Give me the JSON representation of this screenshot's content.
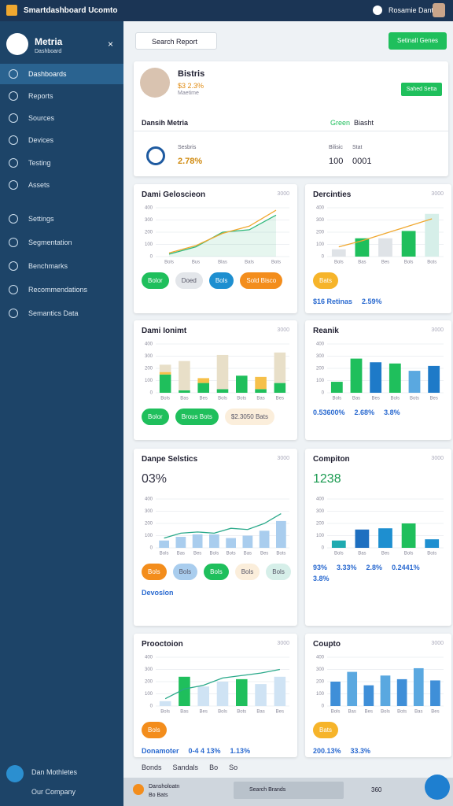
{
  "header": {
    "title": "Smartdashboard Ucomto",
    "user": "Rosamie Dant"
  },
  "sidebar": {
    "brand": "Metria",
    "subtitle": "Dashboard",
    "items": [
      "Dashboards",
      "Reports",
      "Sources",
      "Devices",
      "Testing",
      "Assets",
      "Settings",
      "Segmentation",
      "Benchmarks",
      "Recommendations",
      "Semantics Data"
    ],
    "footer": [
      "Dan Mothletes",
      "Our Company"
    ]
  },
  "toolbar": {
    "search": "Search Report",
    "button": "Setinall Genes"
  },
  "profile": {
    "name": "Bistris",
    "stat": "$3 2.3%",
    "role": "Maetime",
    "button": "Sahed Setta",
    "tabs": [
      "Dansih Metria",
      "Green",
      "Biasht"
    ],
    "metric_label": "Sesbris",
    "metric": "2.78%",
    "col_labels": [
      "Bilisic",
      "Stat"
    ],
    "col_values": [
      "100",
      "0001"
    ]
  },
  "panels": [
    {
      "title": "Dami Geloscieon",
      "corner": "3000",
      "chart": {
        "ylim": [
          0,
          400
        ],
        "yticks": [
          0,
          100,
          200,
          300,
          400
        ],
        "categories": [
          "Bols",
          "Bus",
          "Blas",
          "Bals",
          "Bots"
        ],
        "series": [
          {
            "type": "area",
            "color": "#2fb87a",
            "values": [
              20,
              80,
              200,
              220,
              340
            ]
          },
          {
            "type": "line",
            "color": "#f0a830",
            "values": [
              30,
              90,
              190,
              250,
              380
            ]
          }
        ]
      },
      "chips": [
        {
          "label": "Bolor",
          "color": "#1fbf5c"
        },
        {
          "label": "Doed",
          "color": "#e3e6ea"
        },
        {
          "label": "Bols",
          "color": "#1e8fd0"
        },
        {
          "label": "Sold Bisco",
          "color": "#f38d1c"
        }
      ],
      "stats": []
    },
    {
      "title": "Dercinties",
      "corner": "3000",
      "chart": {
        "ylim": [
          0,
          400
        ],
        "yticks": [
          0,
          100,
          200,
          300,
          400
        ],
        "categories": [
          "Bols",
          "Bas",
          "Bes",
          "Bols",
          "Bots"
        ],
        "series": [
          {
            "type": "bar",
            "colors": [
              "#dfe3e7",
              "#1fbf5c",
              "#dfe3e7",
              "#1fbf5c",
              "#d6efe9"
            ],
            "values": [
              60,
              150,
              150,
              210,
              350
            ]
          },
          {
            "type": "line",
            "color": "#f0a830",
            "values": [
              80,
              130,
              190,
              250,
              310
            ]
          }
        ]
      },
      "chips": [
        {
          "label": "Bats",
          "color": "#f6b42a"
        }
      ],
      "stats": [
        "$16 Retinas",
        "2.59%"
      ]
    },
    {
      "title": "Dami Ionimt",
      "corner": "3000",
      "chart": {
        "ylim": [
          0,
          400
        ],
        "yticks": [
          0,
          100,
          200,
          300,
          400
        ],
        "categories": [
          "Bols",
          "Bas",
          "Bes",
          "Bols",
          "Bots",
          "Bas",
          "Bes"
        ],
        "stacked": true,
        "series": [
          {
            "type": "bar",
            "color": "#1fbf5c",
            "values": [
              150,
              20,
              80,
              30,
              140,
              30,
              80
            ]
          },
          {
            "type": "bar",
            "color": "#f6c04a",
            "values": [
              20,
              0,
              40,
              0,
              0,
              100,
              0
            ]
          },
          {
            "type": "bar",
            "color": "#e8dfc8",
            "values": [
              60,
              240,
              0,
              280,
              0,
              0,
              250
            ]
          }
        ]
      },
      "chips": [
        {
          "label": "Bolor",
          "color": "#1fbf5c"
        },
        {
          "label": "Brous Bots",
          "color": "#1fbf5c"
        },
        {
          "label": "$2.3050 Bats",
          "color": "#fbeedb"
        }
      ],
      "stats": []
    },
    {
      "title": "Reanik",
      "corner": "3000",
      "chart": {
        "ylim": [
          0,
          400
        ],
        "yticks": [
          0,
          100,
          200,
          300,
          400
        ],
        "categories": [
          "Bols",
          "Bas",
          "Bes",
          "Bols",
          "Bots",
          "Bes"
        ],
        "series": [
          {
            "type": "bar",
            "colors": [
              "#1fbf5c",
              "#1fbf5c",
              "#1e7ac8",
              "#1fbf5c",
              "#5aa8e0",
              "#1e7ac8"
            ],
            "values": [
              90,
              280,
              250,
              240,
              180,
              220
            ]
          }
        ]
      },
      "chips": [],
      "stats": [
        "0.53600%",
        "2.68%",
        "3.8%"
      ]
    },
    {
      "title": "Danpe Selstics",
      "corner": "3000",
      "big": "03%",
      "chart": {
        "ylim": [
          0,
          400
        ],
        "yticks": [
          0,
          100,
          200,
          300,
          400
        ],
        "categories": [
          "Bols",
          "Bas",
          "Bes",
          "Bols",
          "Bots",
          "Bas",
          "Bes",
          "Bots"
        ],
        "series": [
          {
            "type": "bar",
            "color": "#a9cdee",
            "values": [
              60,
              90,
              110,
              110,
              80,
              100,
              140,
              220
            ]
          },
          {
            "type": "line",
            "color": "#2aa98a",
            "values": [
              80,
              120,
              130,
              120,
              160,
              150,
              200,
              280
            ]
          }
        ]
      },
      "chips": [
        {
          "label": "Bols",
          "color": "#f38d1c"
        },
        {
          "label": "Bols",
          "color": "#a9cdee"
        },
        {
          "label": "Bols",
          "color": "#1fbf5c"
        },
        {
          "label": "Bols",
          "color": "#fbeedb"
        },
        {
          "label": "Bols",
          "color": "#d6efe9"
        }
      ],
      "stats": [
        "Devoslon"
      ]
    },
    {
      "title": "Compiton",
      "corner": "3000",
      "big": "1238",
      "chart": {
        "ylim": [
          0,
          400
        ],
        "yticks": [
          0,
          100,
          200,
          300,
          400
        ],
        "categories": [
          "Bols",
          "Bas",
          "Bes",
          "Bols",
          "Bots"
        ],
        "series": [
          {
            "type": "bar",
            "colors": [
              "#1eaab0",
              "#1e6fc0",
              "#1e8fd0",
              "#1fbf5c",
              "#1e8fd0"
            ],
            "values": [
              60,
              150,
              160,
              200,
              70
            ]
          }
        ]
      },
      "chips": [],
      "stats": [
        "93%",
        "3.33%",
        "2.8%",
        "0.2441%",
        "3.8%"
      ]
    },
    {
      "title": "Prooctoion",
      "corner": "3000",
      "chart": {
        "ylim": [
          0,
          400
        ],
        "yticks": [
          0,
          100,
          200,
          300,
          400
        ],
        "categories": [
          "Bols",
          "Bas",
          "Bes",
          "Bols",
          "Bots",
          "Bas",
          "Bes"
        ],
        "series": [
          {
            "type": "bar",
            "colors": [
              "#cfe3f4",
              "#1fbf5c",
              "#cfe3f4",
              "#cfe3f4",
              "#1fbf5c",
              "#cfe3f4",
              "#cfe3f4"
            ],
            "values": [
              40,
              240,
              160,
              200,
              220,
              180,
              240
            ]
          },
          {
            "type": "line",
            "color": "#2aa98a",
            "values": [
              60,
              140,
              170,
              230,
              250,
              270,
              300
            ]
          }
        ]
      },
      "chips": [
        {
          "label": "Bols",
          "color": "#f38d1c"
        }
      ],
      "stats": [
        "Donamoter",
        "0-4 4 13%",
        "1.13%"
      ]
    },
    {
      "title": "Coupto",
      "corner": "3000",
      "chart": {
        "ylim": [
          0,
          400
        ],
        "yticks": [
          0,
          100,
          200,
          300,
          400
        ],
        "categories": [
          "Bols",
          "Bas",
          "Bes",
          "Bols",
          "Bots",
          "Bas",
          "Bes"
        ],
        "series": [
          {
            "type": "bar",
            "colors": [
              "#3f8fd8",
              "#5aa8e0",
              "#3f8fd8",
              "#5aa8e0",
              "#3f8fd8",
              "#5aa8e0",
              "#3f8fd8"
            ],
            "values": [
              200,
              280,
              170,
              250,
              220,
              310,
              210
            ]
          }
        ]
      },
      "chips": [
        {
          "label": "Bats",
          "color": "#f6b42a"
        }
      ],
      "stats": [
        "200.13%",
        "33.3%"
      ]
    }
  ],
  "footer": {
    "items": [
      "Bonds",
      "Sandals",
      "Bo",
      "So"
    ],
    "user": "Dansholoatn",
    "sub": "Bo Bats",
    "search": "Search Brands",
    "value": "360"
  }
}
